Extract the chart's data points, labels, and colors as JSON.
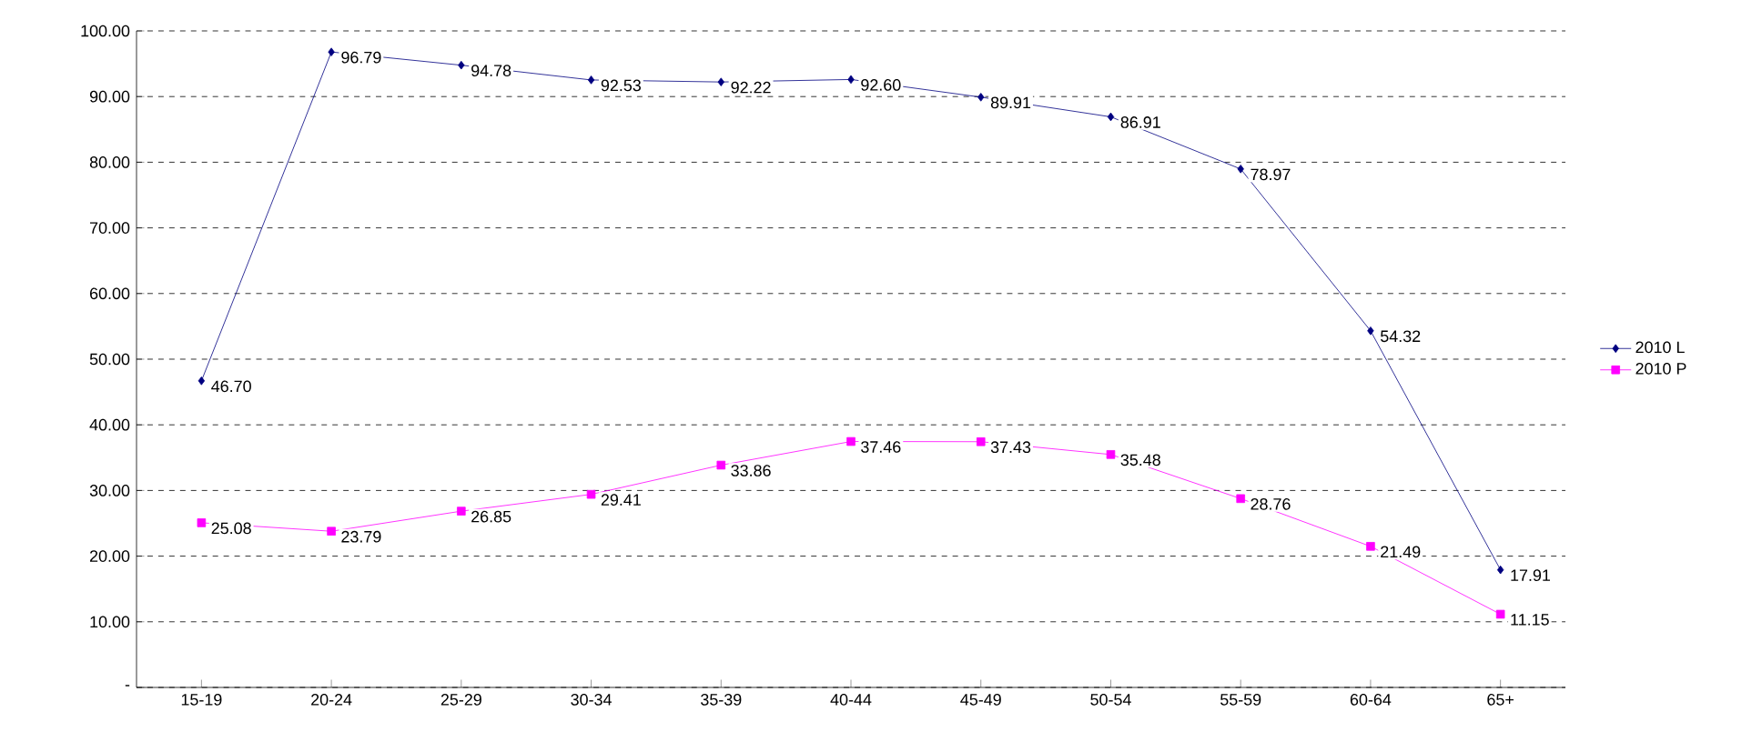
{
  "chart_data": {
    "type": "line",
    "categories": [
      "15-19",
      "20-24",
      "25-29",
      "30-34",
      "35-39",
      "40-44",
      "45-49",
      "50-54",
      "55-59",
      "60-64",
      "65+"
    ],
    "series": [
      {
        "name": "2010 L",
        "color": "#000080",
        "marker": "diamond",
        "values": [
          46.7,
          96.79,
          94.78,
          92.53,
          92.22,
          92.6,
          89.91,
          86.91,
          78.97,
          54.32,
          17.91
        ],
        "value_labels": [
          "46.70",
          "96.79",
          "94.78",
          "92.53",
          "92.22",
          "92.60",
          "89.91",
          "86.91",
          "78.97",
          "54.32",
          "17.91"
        ]
      },
      {
        "name": "2010 P",
        "color": "#ff00ff",
        "marker": "square",
        "values": [
          25.08,
          23.79,
          26.85,
          29.41,
          33.86,
          37.46,
          37.43,
          35.48,
          28.76,
          21.49,
          11.15
        ],
        "value_labels": [
          "25.08",
          "23.79",
          "26.85",
          "29.41",
          "33.86",
          "37.46",
          "37.43",
          "35.48",
          "28.76",
          "21.49",
          "11.15"
        ]
      }
    ],
    "ylim": [
      0,
      100
    ],
    "yticks": [
      {
        "value": 0,
        "label": "-"
      },
      {
        "value": 10,
        "label": "10.00"
      },
      {
        "value": 20,
        "label": "20.00"
      },
      {
        "value": 30,
        "label": "30.00"
      },
      {
        "value": 40,
        "label": "40.00"
      },
      {
        "value": 50,
        "label": "50.00"
      },
      {
        "value": 60,
        "label": "60.00"
      },
      {
        "value": 70,
        "label": "70.00"
      },
      {
        "value": 80,
        "label": "80.00"
      },
      {
        "value": 90,
        "label": "90.00"
      },
      {
        "value": 100,
        "label": "100.00"
      }
    ],
    "grid": "y",
    "legend": "right",
    "line_style": "solid"
  }
}
